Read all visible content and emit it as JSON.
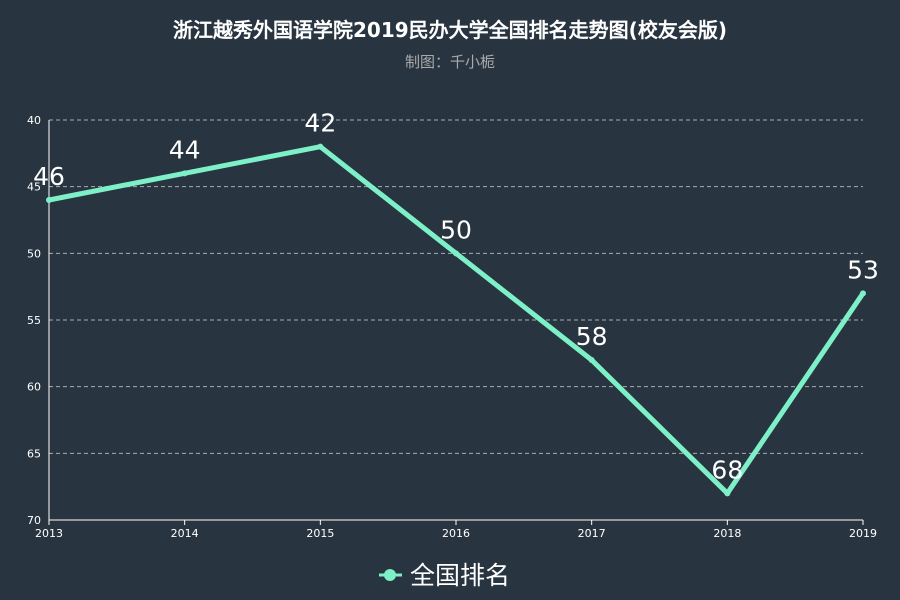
{
  "colors": {
    "background": "#283440",
    "line": "#7ef0c8",
    "grid": "#c7ccd1",
    "axis": "#ffffff",
    "subtitle": "#aaaaaa"
  },
  "chart_data": {
    "type": "line",
    "title": "浙江越秀外国语学院2019民办大学全国排名走势图(校友会版)",
    "subtitle": "制图：千小栀",
    "x": [
      "2013",
      "2014",
      "2015",
      "2016",
      "2017",
      "2018",
      "2019"
    ],
    "series": [
      {
        "name": "全国排名",
        "values": [
          46,
          44,
          42,
          50,
          58,
          68,
          53
        ]
      }
    ],
    "ylim": [
      40,
      70
    ],
    "y_inverted": true,
    "yticks": [
      40,
      45,
      50,
      55,
      60,
      65,
      70
    ],
    "grid": true,
    "grid_style": "dashed",
    "legend_position": "bottom"
  }
}
